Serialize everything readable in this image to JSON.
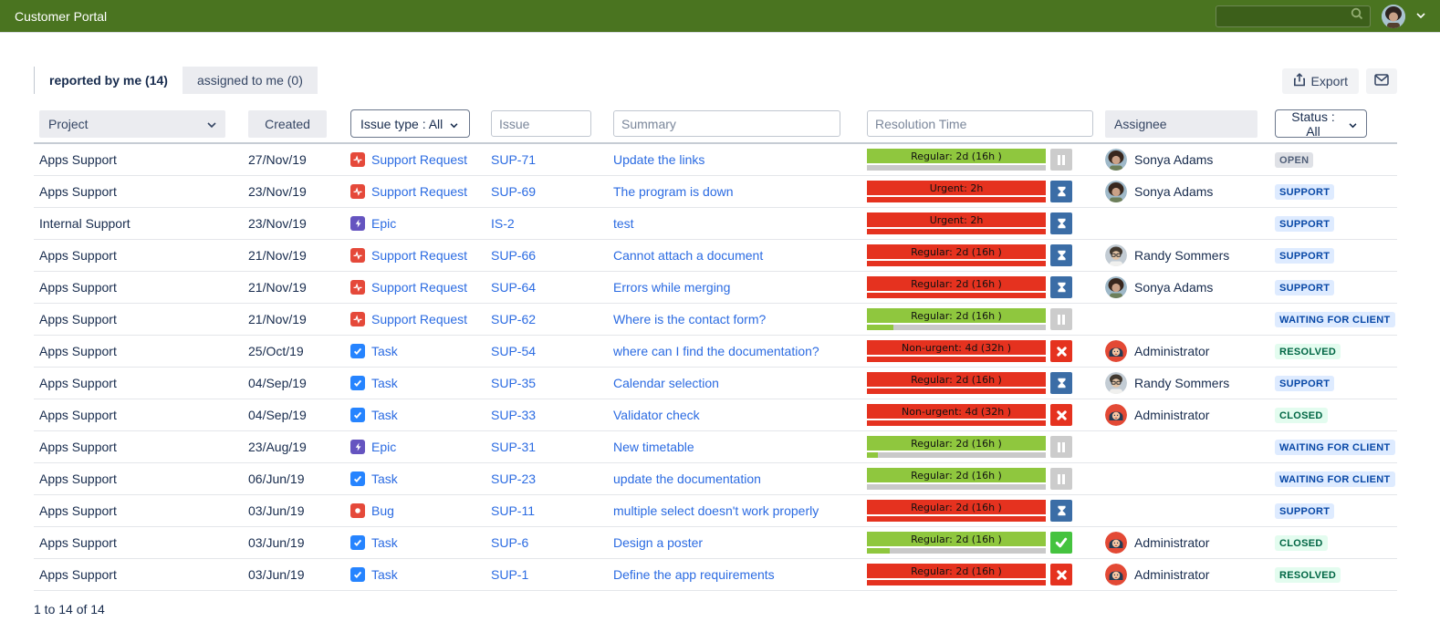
{
  "header": {
    "title": "Customer Portal",
    "search": {
      "placeholder": "",
      "value": "",
      "icon": "search-icon"
    },
    "user": {
      "avatar_icon": "user-avatar",
      "menu_icon": "chevron-down-icon"
    }
  },
  "tabs": [
    {
      "label": "reported by me (14)",
      "active": true
    },
    {
      "label": "assigned to me (0)",
      "active": false
    }
  ],
  "toolbar": {
    "export_label": "Export",
    "export_icon": "export-icon",
    "mail_icon": "envelope-icon"
  },
  "filters": {
    "project_label": "Project",
    "created_label": "Created",
    "issue_type_label": "Issue type : All",
    "issue_placeholder": "Issue",
    "summary_placeholder": "Summary",
    "resolution_placeholder": "Resolution Time",
    "assignee_label": "Assignee",
    "status_label": "Status : All"
  },
  "rows": [
    {
      "project": "Apps Support",
      "created": "27/Nov/19",
      "type": "Support Request",
      "type_key": "support-request",
      "type_icon": "support-request-icon",
      "key": "SUP-71",
      "summary": "Update the links",
      "sla": {
        "label": "Regular: 2d (16h )",
        "level": "green",
        "progress_pct": 0,
        "progress_color": "green",
        "state": "pause",
        "state_icon": "pause-icon"
      },
      "assignee": "Sonya Adams",
      "avatar": "sonya",
      "status": "OPEN",
      "status_kind": "gray"
    },
    {
      "project": "Apps Support",
      "created": "23/Nov/19",
      "type": "Support Request",
      "type_key": "support-request",
      "type_icon": "support-request-icon",
      "key": "SUP-69",
      "summary": "The program is down",
      "sla": {
        "label": "Urgent: 2h",
        "level": "red",
        "progress_pct": 100,
        "progress_color": "red",
        "state": "hourglass",
        "state_icon": "hourglass-icon"
      },
      "assignee": "Sonya Adams",
      "avatar": "sonya",
      "status": "SUPPORT",
      "status_kind": "blue"
    },
    {
      "project": "Internal Support",
      "created": "23/Nov/19",
      "type": "Epic",
      "type_key": "epic",
      "type_icon": "epic-icon",
      "key": "IS-2",
      "summary": "test",
      "sla": {
        "label": "Urgent: 2h",
        "level": "red",
        "progress_pct": 100,
        "progress_color": "red",
        "state": "hourglass",
        "state_icon": "hourglass-icon"
      },
      "assignee": "",
      "avatar": "",
      "status": "SUPPORT",
      "status_kind": "blue"
    },
    {
      "project": "Apps Support",
      "created": "21/Nov/19",
      "type": "Support Request",
      "type_key": "support-request",
      "type_icon": "support-request-icon",
      "key": "SUP-66",
      "summary": "Cannot attach a document",
      "sla": {
        "label": "Regular: 2d (16h )",
        "level": "red",
        "progress_pct": 100,
        "progress_color": "red",
        "state": "hourglass",
        "state_icon": "hourglass-icon"
      },
      "assignee": "Randy Sommers",
      "avatar": "randy",
      "status": "SUPPORT",
      "status_kind": "blue"
    },
    {
      "project": "Apps Support",
      "created": "21/Nov/19",
      "type": "Support Request",
      "type_key": "support-request",
      "type_icon": "support-request-icon",
      "key": "SUP-64",
      "summary": "Errors while merging",
      "sla": {
        "label": "Regular: 2d (16h )",
        "level": "red",
        "progress_pct": 100,
        "progress_color": "red",
        "state": "hourglass",
        "state_icon": "hourglass-icon"
      },
      "assignee": "Sonya Adams",
      "avatar": "sonya",
      "status": "SUPPORT",
      "status_kind": "blue"
    },
    {
      "project": "Apps Support",
      "created": "21/Nov/19",
      "type": "Support Request",
      "type_key": "support-request",
      "type_icon": "support-request-icon",
      "key": "SUP-62",
      "summary": "Where is the contact form?",
      "sla": {
        "label": "Regular: 2d (16h )",
        "level": "green",
        "progress_pct": 15,
        "progress_color": "green",
        "state": "pause",
        "state_icon": "pause-icon"
      },
      "assignee": "",
      "avatar": "",
      "status": "WAITING FOR CLIENT",
      "status_kind": "blue"
    },
    {
      "project": "Apps Support",
      "created": "25/Oct/19",
      "type": "Task",
      "type_key": "task",
      "type_icon": "task-icon",
      "key": "SUP-54",
      "summary": "where can I find the documentation?",
      "sla": {
        "label": "Non-urgent: 4d (32h )",
        "level": "red",
        "progress_pct": 100,
        "progress_color": "red",
        "state": "cross",
        "state_icon": "cross-icon"
      },
      "assignee": "Administrator",
      "avatar": "admin",
      "status": "RESOLVED",
      "status_kind": "green"
    },
    {
      "project": "Apps Support",
      "created": "04/Sep/19",
      "type": "Task",
      "type_key": "task",
      "type_icon": "task-icon",
      "key": "SUP-35",
      "summary": "Calendar selection",
      "sla": {
        "label": "Regular: 2d (16h )",
        "level": "red",
        "progress_pct": 100,
        "progress_color": "red",
        "state": "hourglass",
        "state_icon": "hourglass-icon"
      },
      "assignee": "Randy Sommers",
      "avatar": "randy",
      "status": "SUPPORT",
      "status_kind": "blue"
    },
    {
      "project": "Apps Support",
      "created": "04/Sep/19",
      "type": "Task",
      "type_key": "task",
      "type_icon": "task-icon",
      "key": "SUP-33",
      "summary": "Validator check",
      "sla": {
        "label": "Non-urgent: 4d (32h )",
        "level": "red",
        "progress_pct": 100,
        "progress_color": "red",
        "state": "cross",
        "state_icon": "cross-icon"
      },
      "assignee": "Administrator",
      "avatar": "admin",
      "status": "CLOSED",
      "status_kind": "green"
    },
    {
      "project": "Apps Support",
      "created": "23/Aug/19",
      "type": "Epic",
      "type_key": "epic",
      "type_icon": "epic-icon",
      "key": "SUP-31",
      "summary": "New timetable",
      "sla": {
        "label": "Regular: 2d (16h )",
        "level": "green",
        "progress_pct": 6,
        "progress_color": "green",
        "state": "pause",
        "state_icon": "pause-icon"
      },
      "assignee": "",
      "avatar": "",
      "status": "WAITING FOR CLIENT",
      "status_kind": "blue"
    },
    {
      "project": "Apps Support",
      "created": "06/Jun/19",
      "type": "Task",
      "type_key": "task",
      "type_icon": "task-icon",
      "key": "SUP-23",
      "summary": "update the documentation",
      "sla": {
        "label": "Regular: 2d (16h )",
        "level": "green",
        "progress_pct": 0,
        "progress_color": "green",
        "state": "pause",
        "state_icon": "pause-icon"
      },
      "assignee": "",
      "avatar": "",
      "status": "WAITING FOR CLIENT",
      "status_kind": "blue"
    },
    {
      "project": "Apps Support",
      "created": "03/Jun/19",
      "type": "Bug",
      "type_key": "bug",
      "type_icon": "bug-icon",
      "key": "SUP-11",
      "summary": "multiple select doesn't work properly",
      "sla": {
        "label": "Regular: 2d (16h )",
        "level": "red",
        "progress_pct": 100,
        "progress_color": "red",
        "state": "hourglass",
        "state_icon": "hourglass-icon"
      },
      "assignee": "",
      "avatar": "",
      "status": "SUPPORT",
      "status_kind": "blue"
    },
    {
      "project": "Apps Support",
      "created": "03/Jun/19",
      "type": "Task",
      "type_key": "task",
      "type_icon": "task-icon",
      "key": "SUP-6",
      "summary": "Design a poster",
      "sla": {
        "label": "Regular: 2d (16h )",
        "level": "green",
        "progress_pct": 13,
        "progress_color": "green",
        "state": "check",
        "state_icon": "check-icon"
      },
      "assignee": "Administrator",
      "avatar": "admin",
      "status": "CLOSED",
      "status_kind": "green"
    },
    {
      "project": "Apps Support",
      "created": "03/Jun/19",
      "type": "Task",
      "type_key": "task",
      "type_icon": "task-icon",
      "key": "SUP-1",
      "summary": "Define the app requirements",
      "sla": {
        "label": "Regular: 2d (16h )",
        "level": "red",
        "progress_pct": 100,
        "progress_color": "red",
        "state": "cross",
        "state_icon": "cross-icon"
      },
      "assignee": "Administrator",
      "avatar": "admin",
      "status": "RESOLVED",
      "status_kind": "green"
    }
  ],
  "footer": {
    "pagination": "1 to 14 of 14"
  },
  "colors": {
    "header_bg": "#4a7420",
    "link": "#2b6be2",
    "sla_green": "#8fc73e",
    "sla_red": "#e5321f",
    "state_pause_bg": "#cccccc",
    "state_hourglass_bg": "#3b6da6",
    "state_cross_bg": "#e5321f",
    "state_check_bg": "#45c33f",
    "lozenge_gray_bg": "#dfe1e6",
    "lozenge_gray_text": "#505f79",
    "lozenge_blue_bg": "#deebff",
    "lozenge_blue_text": "#0747a6",
    "lozenge_green_bg": "#e3fcef",
    "lozenge_green_text": "#006644"
  }
}
